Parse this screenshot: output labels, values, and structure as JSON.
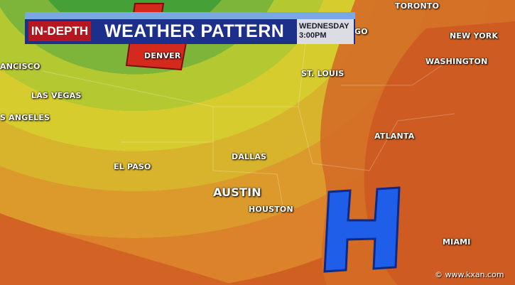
{
  "banner": {
    "tag": "IN-DEPTH",
    "title": "WEATHER PATTERN",
    "day": "WEDNESDAY",
    "time": "3:00PM"
  },
  "pressure": {
    "low": "L",
    "high": "H",
    "low_color": "#d42a1e",
    "high_color": "#1f5ee8"
  },
  "cities": {
    "denver": "DENVER",
    "toronto": "TORONTO",
    "chicago": "GO",
    "new_york": "NEW YORK",
    "washington": "WASHINGTON",
    "st_louis": "ST. LOUIS",
    "san_francisco": "ANCISCO",
    "las_vegas": "LAS VEGAS",
    "los_angeles": "S ANGELES",
    "atlanta": "ATLANTA",
    "dallas": "DALLAS",
    "el_paso": "EL PASO",
    "austin": "AUSTIN",
    "houston": "HOUSTON",
    "miami": "MIAMI"
  },
  "watermark": "© www.kxan.com",
  "colors": {
    "green": "#3f9e36",
    "yellow": "#d8c928",
    "orange": "#dc8a2c",
    "red_orange": "#cc5420"
  }
}
